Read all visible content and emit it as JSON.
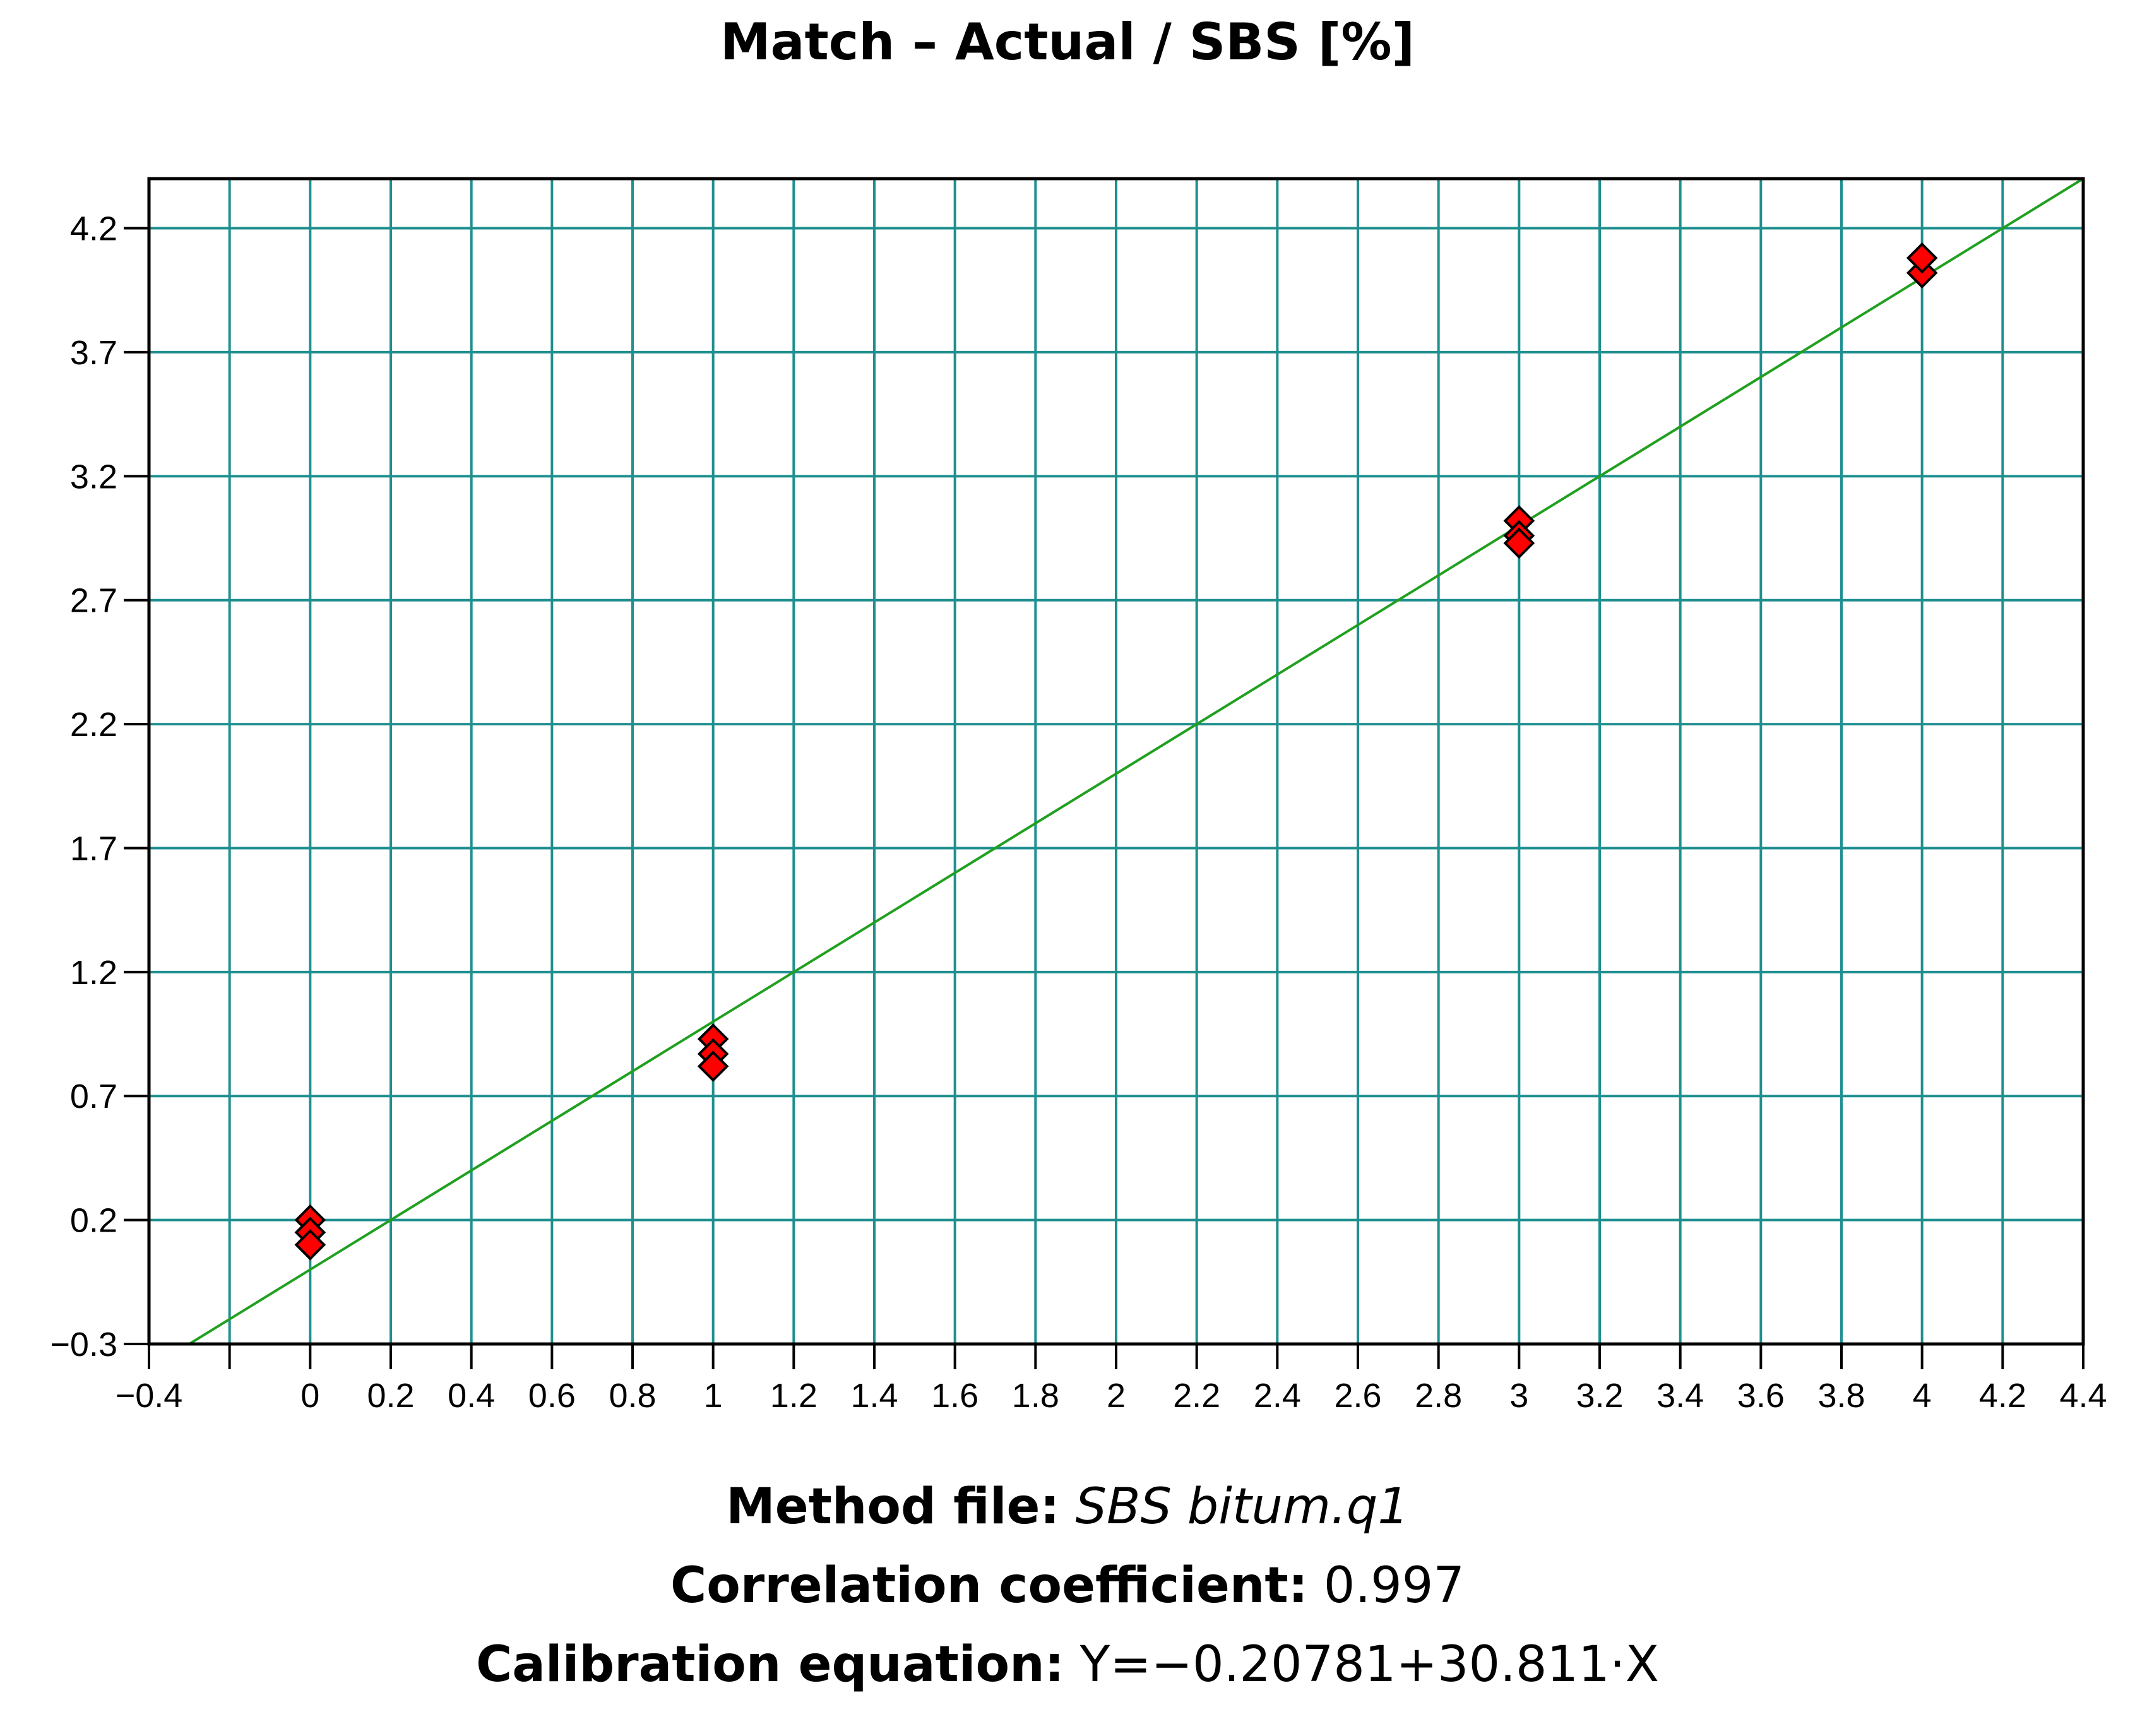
{
  "chart_data": {
    "type": "scatter",
    "title": "Match – Actual / SBS [%]",
    "xlabel": "",
    "ylabel": "",
    "xlim": [
      -0.4,
      4.4
    ],
    "ylim": [
      -0.3,
      4.4
    ],
    "x_ticks": [
      -0.4,
      0,
      0.2,
      0.4,
      0.6,
      0.8,
      1,
      1.2,
      1.4,
      1.6,
      1.8,
      2,
      2.2,
      2.4,
      2.6,
      2.8,
      3,
      3.2,
      3.4,
      3.6,
      3.8,
      4,
      4.2,
      4.4
    ],
    "x_tick_labels": [
      "−0.4",
      "0",
      "0.2",
      "0.4",
      "0.6",
      "0.8",
      "1",
      "1.2",
      "1.4",
      "1.6",
      "1.8",
      "2",
      "2.2",
      "2.4",
      "2.6",
      "2.8",
      "3",
      "3.2",
      "3.4",
      "3.6",
      "3.8",
      "4",
      "4.2",
      "4.4"
    ],
    "x_grid": [
      -0.2,
      0,
      0.2,
      0.4,
      0.6,
      0.8,
      1,
      1.2,
      1.4,
      1.6,
      1.8,
      2,
      2.2,
      2.4,
      2.6,
      2.8,
      3,
      3.2,
      3.4,
      3.6,
      3.8,
      4,
      4.2
    ],
    "y_ticks": [
      -0.3,
      0.2,
      0.7,
      1.2,
      1.7,
      2.2,
      2.7,
      3.2,
      3.7,
      4.2
    ],
    "y_tick_labels": [
      "−0.3",
      "0.2",
      "0.7",
      "1.2",
      "1.7",
      "2.2",
      "2.7",
      "3.2",
      "3.7",
      "4.2"
    ],
    "grid": true,
    "series": [
      {
        "marker": "diamond",
        "color": "#ff0000",
        "points": [
          {
            "x": 0,
            "y": 0.2
          },
          {
            "x": 0,
            "y": 0.15
          },
          {
            "x": 0,
            "y": 0.1
          },
          {
            "x": 1,
            "y": 0.93
          },
          {
            "x": 1,
            "y": 0.87
          },
          {
            "x": 1,
            "y": 0.82
          },
          {
            "x": 3,
            "y": 3.02
          },
          {
            "x": 3,
            "y": 2.96
          },
          {
            "x": 3,
            "y": 2.93
          },
          {
            "x": 4,
            "y": 4.02
          },
          {
            "x": 4,
            "y": 4.08
          }
        ]
      }
    ],
    "fit_line": {
      "x": [
        -0.3,
        4.4
      ],
      "y": [
        -0.3,
        4.4
      ],
      "color": "#20a020"
    }
  },
  "colors": {
    "grid": "#1f8f8f",
    "axis": "#000000",
    "fit_line": "#20a020",
    "marker_fill": "#ff0000",
    "marker_stroke": "#000000"
  },
  "footer": {
    "method_label": "Method file:",
    "method_value": "SBS bitum.q1",
    "corr_label": "Correlation coefficient:",
    "corr_value": "0.997",
    "calib_label": "Calibration equation:",
    "calib_value": "Y=−0.20781+30.811·X"
  }
}
